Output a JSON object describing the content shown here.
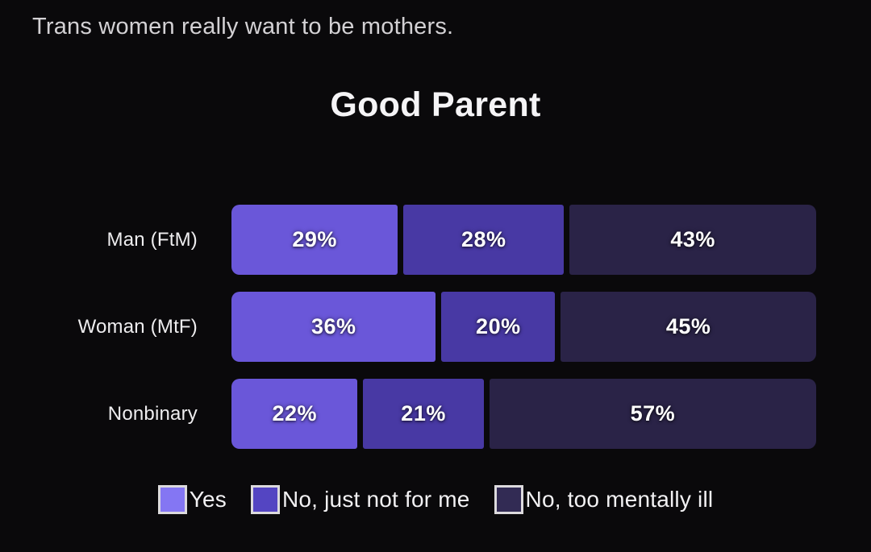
{
  "page": {
    "background": "#0a090b",
    "top_note": "Trans women really want to be mothers.",
    "title": "Good Parent"
  },
  "chart_data": {
    "type": "bar",
    "orientation": "horizontal",
    "stacked": true,
    "title": "Good Parent",
    "categories": [
      "Man (FtM)",
      "Woman (MtF)",
      "Nonbinary"
    ],
    "series": [
      {
        "name": "Yes",
        "values": [
          29,
          36,
          22
        ],
        "bar_color": "#6a57d9",
        "legend_color": "#8476f3"
      },
      {
        "name": "No, just not for me",
        "values": [
          28,
          20,
          21
        ],
        "bar_color": "#4839a4",
        "legend_color": "#5445c2"
      },
      {
        "name": "No, too mentally ill",
        "values": [
          43,
          45,
          57
        ],
        "bar_color": "#2a2347",
        "legend_color": "#322b54"
      }
    ],
    "value_suffix": "%",
    "value_labels": [
      [
        "29%",
        "28%",
        "43%"
      ],
      [
        "36%",
        "20%",
        "45%"
      ],
      [
        "22%",
        "21%",
        "57%"
      ]
    ],
    "xlim": [
      0,
      100
    ],
    "grid": false,
    "legend_position": "bottom"
  }
}
